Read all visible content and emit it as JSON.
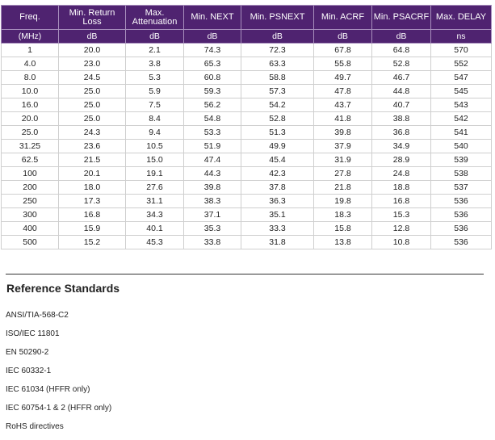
{
  "table": {
    "headers": [
      {
        "label": "Freq.",
        "unit": "(MHz)"
      },
      {
        "label": "Min. Return Loss",
        "unit": "dB"
      },
      {
        "label": "Max. Attenuation",
        "unit": "dB"
      },
      {
        "label": "Min. NEXT",
        "unit": "dB"
      },
      {
        "label": "Min. PSNEXT",
        "unit": "dB"
      },
      {
        "label": "Min. ACRF",
        "unit": "dB"
      },
      {
        "label": "Min. PSACRF",
        "unit": "dB"
      },
      {
        "label": "Max. DELAY",
        "unit": "ns"
      }
    ],
    "rows": [
      [
        "1",
        "20.0",
        "2.1",
        "74.3",
        "72.3",
        "67.8",
        "64.8",
        "570"
      ],
      [
        "4.0",
        "23.0",
        "3.8",
        "65.3",
        "63.3",
        "55.8",
        "52.8",
        "552"
      ],
      [
        "8.0",
        "24.5",
        "5.3",
        "60.8",
        "58.8",
        "49.7",
        "46.7",
        "547"
      ],
      [
        "10.0",
        "25.0",
        "5.9",
        "59.3",
        "57.3",
        "47.8",
        "44.8",
        "545"
      ],
      [
        "16.0",
        "25.0",
        "7.5",
        "56.2",
        "54.2",
        "43.7",
        "40.7",
        "543"
      ],
      [
        "20.0",
        "25.0",
        "8.4",
        "54.8",
        "52.8",
        "41.8",
        "38.8",
        "542"
      ],
      [
        "25.0",
        "24.3",
        "9.4",
        "53.3",
        "51.3",
        "39.8",
        "36.8",
        "541"
      ],
      [
        "31.25",
        "23.6",
        "10.5",
        "51.9",
        "49.9",
        "37.9",
        "34.9",
        "540"
      ],
      [
        "62.5",
        "21.5",
        "15.0",
        "47.4",
        "45.4",
        "31.9",
        "28.9",
        "539"
      ],
      [
        "100",
        "20.1",
        "19.1",
        "44.3",
        "42.3",
        "27.8",
        "24.8",
        "538"
      ],
      [
        "200",
        "18.0",
        "27.6",
        "39.8",
        "37.8",
        "21.8",
        "18.8",
        "537"
      ],
      [
        "250",
        "17.3",
        "31.1",
        "38.3",
        "36.3",
        "19.8",
        "16.8",
        "536"
      ],
      [
        "300",
        "16.8",
        "34.3",
        "37.1",
        "35.1",
        "18.3",
        "15.3",
        "536"
      ],
      [
        "400",
        "15.9",
        "40.1",
        "35.3",
        "33.3",
        "15.8",
        "12.8",
        "536"
      ],
      [
        "500",
        "15.2",
        "45.3",
        "33.8",
        "31.8",
        "13.8",
        "10.8",
        "536"
      ]
    ]
  },
  "reference": {
    "title": "Reference Standards",
    "items": [
      "ANSI/TIA-568-C2",
      "ISO/IEC 11801",
      "EN 50290-2",
      "IEC 60332-1",
      "IEC 61034 (HFFR only)",
      "IEC 60754-1 & 2 (HFFR only)",
      "RoHS directives"
    ]
  },
  "colors": {
    "header_bg": "#4f2370",
    "header_text": "#ffffff",
    "grid": "#cfcfcf"
  }
}
